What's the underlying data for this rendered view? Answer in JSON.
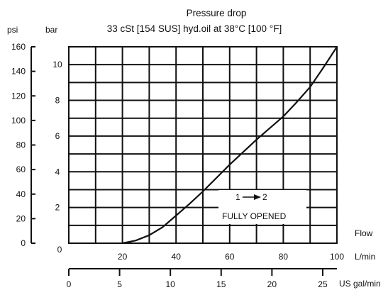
{
  "chart_data": {
    "type": "line",
    "title": "Pressure drop",
    "subtitle": "33 cSt [154 SUS] hyd.oil at 38°C [100 °F]",
    "x_axis": {
      "unit": "L/min",
      "name": "Flow",
      "range": [
        0,
        100
      ],
      "ticks": [
        0,
        20,
        40,
        60,
        80,
        100
      ]
    },
    "x2_axis": {
      "unit": "US gal/min",
      "range": [
        0,
        26.4
      ],
      "ticks": [
        0,
        5,
        10,
        15,
        20,
        25
      ]
    },
    "y_axis": {
      "unit": "bar",
      "range": [
        0,
        11
      ],
      "ticks": [
        0,
        2,
        4,
        6,
        8,
        10
      ]
    },
    "y2_axis": {
      "unit": "psi",
      "range": [
        0,
        160
      ],
      "ticks": [
        0,
        20,
        40,
        60,
        80,
        100,
        120,
        140,
        160
      ]
    },
    "grid": true,
    "annotation": {
      "from": "1",
      "to": "2",
      "text": "FULLY OPENED"
    },
    "series": [
      {
        "x": [
          20,
          25,
          30,
          35,
          40,
          45,
          50,
          55,
          60,
          65,
          70,
          75,
          80,
          85,
          90,
          95,
          100
        ],
        "y": [
          0,
          0.15,
          0.45,
          0.9,
          1.55,
          2.2,
          2.9,
          3.65,
          4.4,
          5.1,
          5.8,
          6.45,
          7.1,
          7.9,
          8.75,
          9.85,
          11.0
        ]
      }
    ]
  }
}
